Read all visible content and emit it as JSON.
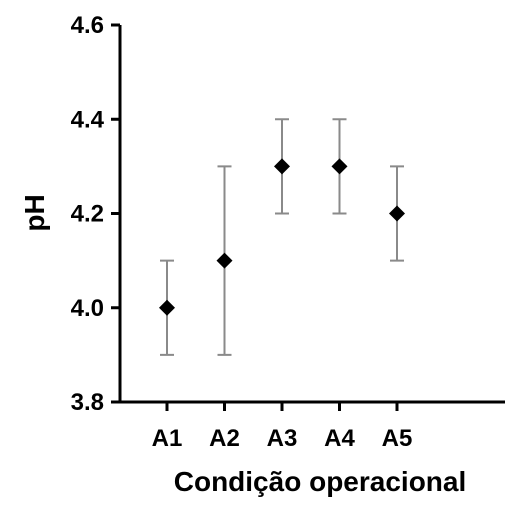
{
  "chart_data": {
    "type": "scatter",
    "title": "",
    "xlabel": "Condição operacional",
    "ylabel": "pH",
    "categories": [
      "A1",
      "A2",
      "A3",
      "A4",
      "A5"
    ],
    "values": [
      4.0,
      4.1,
      4.3,
      4.3,
      4.2
    ],
    "error_low": [
      3.9,
      3.9,
      4.2,
      4.2,
      4.1
    ],
    "error_high": [
      4.1,
      4.3,
      4.4,
      4.4,
      4.3
    ],
    "ylim": [
      3.8,
      4.6
    ],
    "yticks": [
      "3.8",
      "4.0",
      "4.2",
      "4.4",
      "4.6"
    ],
    "grid": false,
    "marker": "diamond",
    "colors": {
      "marker": "#000000",
      "error_bar": "#8a8a8a",
      "axis": "#000000"
    }
  }
}
